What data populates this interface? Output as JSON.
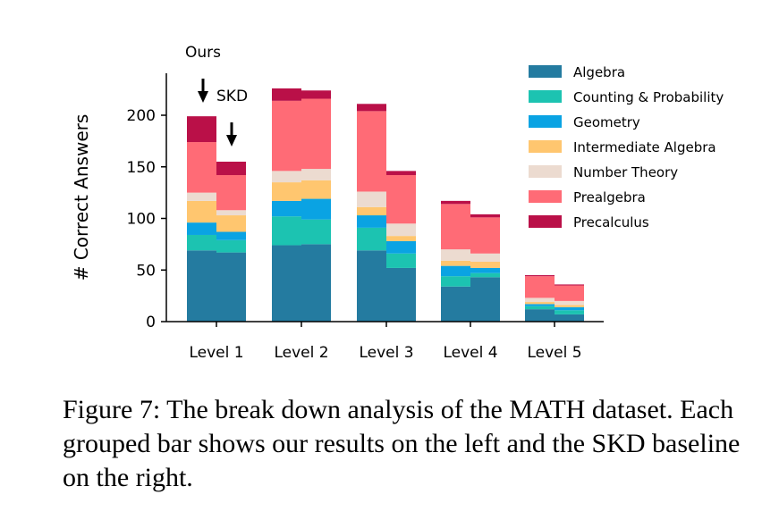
{
  "chart_data": {
    "type": "bar",
    "stacked": true,
    "grouped": true,
    "categories": [
      "Level 1",
      "Level 2",
      "Level 3",
      "Level 4",
      "Level 5"
    ],
    "groups": [
      "Ours",
      "SKD"
    ],
    "ylabel": "# Correct Answers",
    "ylim": [
      0,
      240
    ],
    "yticks": [
      0,
      50,
      100,
      150,
      200
    ],
    "legend_position": "top-right",
    "grid": false,
    "series": [
      {
        "name": "Algebra",
        "color": "#247ba0",
        "ours": [
          69,
          74,
          69,
          34,
          12
        ],
        "skd": [
          67,
          75,
          52,
          43,
          7
        ]
      },
      {
        "name": "Counting & Probability",
        "color": "#1cc3b1",
        "ours": [
          15,
          28,
          22,
          10,
          3
        ],
        "skd": [
          12,
          24,
          14,
          4,
          4
        ]
      },
      {
        "name": "Geometry",
        "color": "#0aa3e3",
        "ours": [
          12,
          15,
          12,
          10,
          2
        ],
        "skd": [
          8,
          20,
          12,
          5,
          3
        ]
      },
      {
        "name": "Intermediate Algebra",
        "color": "#ffc66f",
        "ours": [
          21,
          18,
          8,
          5,
          2
        ],
        "skd": [
          16,
          18,
          5,
          6,
          2
        ]
      },
      {
        "name": "Number Theory",
        "color": "#ecdbd0",
        "ours": [
          8,
          11,
          15,
          11,
          4
        ],
        "skd": [
          5,
          11,
          12,
          8,
          4
        ]
      },
      {
        "name": "Prealgebra",
        "color": "#ff6b76",
        "ours": [
          49,
          68,
          78,
          44,
          21
        ],
        "skd": [
          34,
          68,
          47,
          35,
          15
        ]
      },
      {
        "name": "Precalculus",
        "color": "#ba1048",
        "ours": [
          25,
          12,
          7,
          3,
          1
        ],
        "skd": [
          13,
          8,
          4,
          3,
          1
        ]
      }
    ]
  },
  "annotations": {
    "ours_label": "Ours",
    "skd_label": "SKD"
  },
  "caption": "Figure 7: The break down analysis of the MATH dataset. Each grouped bar shows our results on the left and the SKD baseline on the right."
}
